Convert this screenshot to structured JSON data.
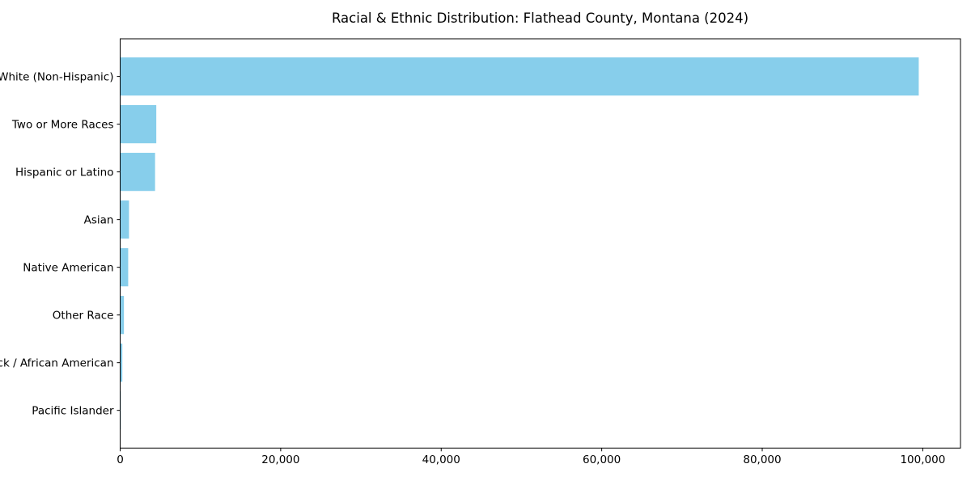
{
  "chart_data": {
    "type": "bar",
    "orientation": "horizontal",
    "title": "Racial & Ethnic Distribution: Flathead County, Montana (2024)",
    "categories": [
      "White (Non-Hispanic)",
      "Two or More Races",
      "Hispanic or Latino",
      "Asian",
      "Native American",
      "Other Race",
      "Black / African American",
      "Pacific Islander"
    ],
    "values": [
      99500,
      4500,
      4350,
      1100,
      1000,
      470,
      270,
      80
    ],
    "xlabel": "",
    "ylabel": "",
    "xlim": [
      0,
      104700
    ],
    "x_ticks": [
      {
        "value": 0,
        "label": "0"
      },
      {
        "value": 20000,
        "label": "20,000"
      },
      {
        "value": 40000,
        "label": "40,000"
      },
      {
        "value": 60000,
        "label": "60,000"
      },
      {
        "value": 80000,
        "label": "80,000"
      },
      {
        "value": 100000,
        "label": "100,000"
      }
    ],
    "bar_color": "#87CEEB",
    "axis_color": "#000000",
    "grid": false,
    "legend": null
  }
}
